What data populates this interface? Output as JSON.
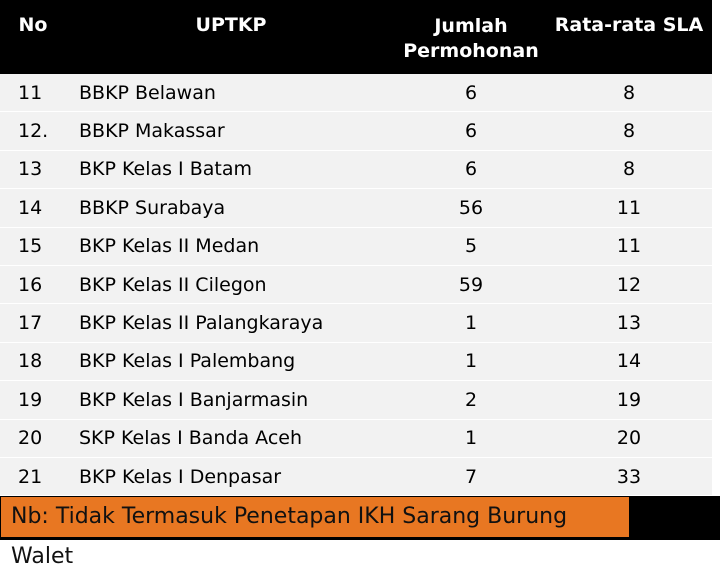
{
  "table": {
    "headers": {
      "no": "No",
      "uptkp": "UPTKP",
      "jumlah_line1": "Jumlah",
      "jumlah_line2": "Permohonan",
      "sla": "Rata-rata SLA"
    },
    "rows": [
      {
        "no": "11",
        "name": "BBKP Belawan",
        "jumlah": "6",
        "sla": "8"
      },
      {
        "no": "12.",
        "name": "BBKP Makassar",
        "jumlah": "6",
        "sla": "8"
      },
      {
        "no": "13",
        "name": "BKP Kelas I Batam",
        "jumlah": "6",
        "sla": "8"
      },
      {
        "no": "14",
        "name": "BBKP Surabaya",
        "jumlah": "56",
        "sla": "11"
      },
      {
        "no": "15",
        "name": "BKP Kelas II Medan",
        "jumlah": "5",
        "sla": "11"
      },
      {
        "no": "16",
        "name": "BKP Kelas II Cilegon",
        "jumlah": "59",
        "sla": "12"
      },
      {
        "no": "17",
        "name": "BKP Kelas II Palangkaraya",
        "jumlah": "1",
        "sla": "13"
      },
      {
        "no": "18",
        "name": "BKP Kelas I Palembang",
        "jumlah": "1",
        "sla": "14"
      },
      {
        "no": "19",
        "name": "BKP Kelas I Banjarmasin",
        "jumlah": "2",
        "sla": "19"
      },
      {
        "no": "20",
        "name": "SKP Kelas I Banda Aceh",
        "jumlah": "1",
        "sla": "20"
      },
      {
        "no": "21",
        "name": "BKP Kelas I Denpasar",
        "jumlah": "7",
        "sla": "33"
      }
    ]
  },
  "note": "Nb: Tidak Termasuk Penetapan IKH Sarang Burung Walet",
  "colors": {
    "header_bg": "#000000",
    "row_bg": "#f2f2f2",
    "note_bg": "#e87722"
  }
}
